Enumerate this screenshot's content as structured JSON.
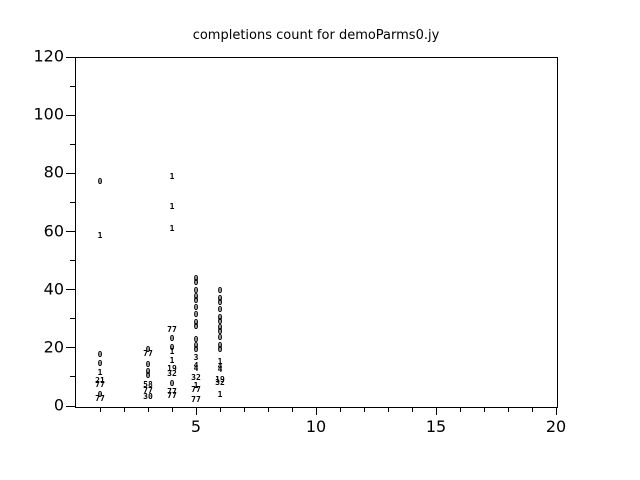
{
  "title": "completions count for demoParms0.jy",
  "colors": {
    "background": "#ffffff",
    "axis": "#000000",
    "text": "#000000"
  },
  "chart_data": {
    "type": "scatter",
    "title": "completions count for demoParms0.jy",
    "xlabel": "",
    "ylabel": "",
    "xlim": [
      0,
      20
    ],
    "ylim": [
      0,
      120
    ],
    "x_major_ticks": [
      5,
      10,
      15,
      20
    ],
    "x_minor_step": 1,
    "y_major_ticks": [
      0,
      20,
      40,
      60,
      80,
      100,
      120
    ],
    "y_minor_step": 10,
    "grid": false,
    "legend": "none",
    "marker_style": "numeric-text-labels",
    "points": [
      {
        "x": 1,
        "y": 77.0,
        "label": "0"
      },
      {
        "x": 1,
        "y": 58.3,
        "label": "1"
      },
      {
        "x": 1,
        "y": 17.6,
        "label": "0"
      },
      {
        "x": 1,
        "y": 14.5,
        "label": "0"
      },
      {
        "x": 1,
        "y": 11.4,
        "label": "1"
      },
      {
        "x": 1,
        "y": 8.6,
        "label": "21"
      },
      {
        "x": 1,
        "y": 7.2,
        "label": "77"
      },
      {
        "x": 1,
        "y": 3.8,
        "label": "0"
      },
      {
        "x": 1,
        "y": 2.4,
        "label": "77"
      },
      {
        "x": 3,
        "y": 19.3,
        "label": "0"
      },
      {
        "x": 3,
        "y": 17.9,
        "label": "77"
      },
      {
        "x": 3,
        "y": 14.1,
        "label": "0"
      },
      {
        "x": 3,
        "y": 11.7,
        "label": "0"
      },
      {
        "x": 3,
        "y": 10.3,
        "label": "0"
      },
      {
        "x": 3,
        "y": 7.2,
        "label": "58"
      },
      {
        "x": 3,
        "y": 5.2,
        "label": "77"
      },
      {
        "x": 3,
        "y": 3.1,
        "label": "30"
      },
      {
        "x": 4,
        "y": 78.6,
        "label": "1"
      },
      {
        "x": 4,
        "y": 68.3,
        "label": "1"
      },
      {
        "x": 4,
        "y": 60.7,
        "label": "1"
      },
      {
        "x": 4,
        "y": 26.2,
        "label": "77"
      },
      {
        "x": 4,
        "y": 23.1,
        "label": "0"
      },
      {
        "x": 4,
        "y": 20.0,
        "label": "0"
      },
      {
        "x": 4,
        "y": 18.6,
        "label": "1"
      },
      {
        "x": 4,
        "y": 15.5,
        "label": "1"
      },
      {
        "x": 4,
        "y": 12.8,
        "label": "19"
      },
      {
        "x": 4,
        "y": 11.0,
        "label": "32"
      },
      {
        "x": 4,
        "y": 7.6,
        "label": "0"
      },
      {
        "x": 4,
        "y": 4.8,
        "label": "77"
      },
      {
        "x": 4,
        "y": 3.4,
        "label": "77"
      },
      {
        "x": 5,
        "y": 43.8,
        "label": "0"
      },
      {
        "x": 5,
        "y": 42.4,
        "label": "0"
      },
      {
        "x": 5,
        "y": 39.7,
        "label": "0"
      },
      {
        "x": 5,
        "y": 37.6,
        "label": "0"
      },
      {
        "x": 5,
        "y": 36.2,
        "label": "0"
      },
      {
        "x": 5,
        "y": 33.8,
        "label": "0"
      },
      {
        "x": 5,
        "y": 31.4,
        "label": "0"
      },
      {
        "x": 5,
        "y": 28.6,
        "label": "0"
      },
      {
        "x": 5,
        "y": 27.2,
        "label": "0"
      },
      {
        "x": 5,
        "y": 22.8,
        "label": "0"
      },
      {
        "x": 5,
        "y": 20.7,
        "label": "0"
      },
      {
        "x": 5,
        "y": 19.3,
        "label": "0"
      },
      {
        "x": 5,
        "y": 16.6,
        "label": "3"
      },
      {
        "x": 5,
        "y": 13.8,
        "label": "4"
      },
      {
        "x": 5,
        "y": 12.8,
        "label": "4"
      },
      {
        "x": 5,
        "y": 9.7,
        "label": "32"
      },
      {
        "x": 5,
        "y": 6.9,
        "label": "1"
      },
      {
        "x": 5,
        "y": 5.5,
        "label": "77"
      },
      {
        "x": 5,
        "y": 2.1,
        "label": "77"
      },
      {
        "x": 6,
        "y": 39.7,
        "label": "0"
      },
      {
        "x": 6,
        "y": 36.9,
        "label": "0"
      },
      {
        "x": 6,
        "y": 35.5,
        "label": "0"
      },
      {
        "x": 6,
        "y": 33.1,
        "label": "0"
      },
      {
        "x": 6,
        "y": 30.3,
        "label": "0"
      },
      {
        "x": 6,
        "y": 29.0,
        "label": "0"
      },
      {
        "x": 6,
        "y": 26.9,
        "label": "0"
      },
      {
        "x": 6,
        "y": 25.5,
        "label": "0"
      },
      {
        "x": 6,
        "y": 23.4,
        "label": "0"
      },
      {
        "x": 6,
        "y": 20.7,
        "label": "0"
      },
      {
        "x": 6,
        "y": 19.3,
        "label": "0"
      },
      {
        "x": 6,
        "y": 15.2,
        "label": "1"
      },
      {
        "x": 6,
        "y": 13.4,
        "label": "4"
      },
      {
        "x": 6,
        "y": 12.4,
        "label": "4"
      },
      {
        "x": 6,
        "y": 9.0,
        "label": "19"
      },
      {
        "x": 6,
        "y": 7.9,
        "label": "32"
      },
      {
        "x": 6,
        "y": 3.8,
        "label": "1"
      }
    ]
  }
}
